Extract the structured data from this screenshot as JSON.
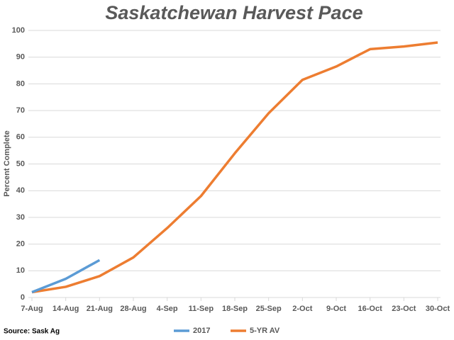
{
  "chart_data": {
    "type": "line",
    "title": "Saskatchewan Harvest Pace",
    "y_label": "Percent Complete",
    "source": "Source: Sask Ag",
    "categories": [
      "7-Aug",
      "14-Aug",
      "21-Aug",
      "28-Aug",
      "4-Sep",
      "11-Sep",
      "18-Sep",
      "25-Sep",
      "2-Oct",
      "9-Oct",
      "16-Oct",
      "23-Oct",
      "30-Oct"
    ],
    "series": [
      {
        "name": "2017",
        "color": "#5b9bd5",
        "values": [
          2,
          7,
          14,
          null,
          null,
          null,
          null,
          null,
          null,
          null,
          null,
          null,
          null
        ]
      },
      {
        "name": "5-YR AV",
        "color": "#ed7d31",
        "values": [
          2,
          4,
          8,
          15,
          26,
          38,
          54,
          69,
          81.5,
          86.5,
          93,
          94,
          95.5
        ]
      }
    ],
    "ylim": [
      0,
      100
    ],
    "yticks": [
      0,
      10,
      20,
      30,
      40,
      50,
      60,
      70,
      80,
      90,
      100
    ],
    "grid": true,
    "legend": "bottom"
  }
}
